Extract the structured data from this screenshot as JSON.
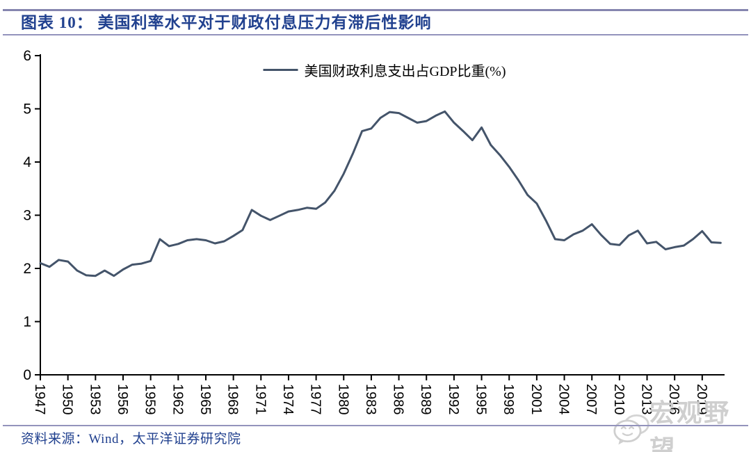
{
  "header": {
    "title": "图表 10：  美国利率水平对于财政付息压力有滞后性影响"
  },
  "legend": {
    "label": "美国财政利息支出占GDP比重(%)"
  },
  "footer": {
    "source": "资料来源：Wind，太平洋证券研究院"
  },
  "watermark": {
    "text": "宏观野望",
    "icon": "wechat-bubble-icon"
  },
  "colors": {
    "line": "#44546A",
    "title_text": "#21418F",
    "rule": "#8585AF",
    "axis": "#000000",
    "watermark": "#CDCDCD"
  },
  "chart_data": {
    "type": "line",
    "title": "图表 10：美国利率水平对于财政付息压力有滞后性影响",
    "series_name": "美国财政利息支出占GDP比重(%)",
    "xlabel": "",
    "ylabel": "",
    "ylim": [
      0,
      6
    ],
    "grid": false,
    "legend_position": "top-center",
    "y_ticks": [
      "0",
      "1",
      "2",
      "3",
      "4",
      "5",
      "6"
    ],
    "x_tick_labels": [
      "1947",
      "1950",
      "1953",
      "1956",
      "1959",
      "1962",
      "1965",
      "1968",
      "1971",
      "1974",
      "1977",
      "1980",
      "1983",
      "1986",
      "1989",
      "1992",
      "1995",
      "1998",
      "2001",
      "2004",
      "2007",
      "2010",
      "2013",
      "2016",
      "2019"
    ],
    "x": [
      1947,
      1948,
      1949,
      1950,
      1951,
      1952,
      1953,
      1954,
      1955,
      1956,
      1957,
      1958,
      1959,
      1960,
      1961,
      1962,
      1963,
      1964,
      1965,
      1966,
      1967,
      1968,
      1969,
      1970,
      1971,
      1972,
      1973,
      1974,
      1975,
      1976,
      1977,
      1978,
      1979,
      1980,
      1981,
      1982,
      1983,
      1984,
      1985,
      1986,
      1987,
      1988,
      1989,
      1990,
      1991,
      1992,
      1993,
      1994,
      1995,
      1996,
      1997,
      1998,
      1999,
      2000,
      2001,
      2002,
      2003,
      2004,
      2005,
      2006,
      2007,
      2008,
      2009,
      2010,
      2011,
      2012,
      2013,
      2014,
      2015,
      2016,
      2017,
      2018,
      2019,
      2020,
      2021
    ],
    "values": [
      2.1,
      2.03,
      2.16,
      2.13,
      1.96,
      1.87,
      1.86,
      1.96,
      1.86,
      1.98,
      2.07,
      2.09,
      2.14,
      2.55,
      2.42,
      2.46,
      2.53,
      2.55,
      2.53,
      2.47,
      2.51,
      2.61,
      2.72,
      3.1,
      2.99,
      2.91,
      2.99,
      3.07,
      3.1,
      3.14,
      3.12,
      3.24,
      3.46,
      3.78,
      4.16,
      4.58,
      4.63,
      4.83,
      4.94,
      4.92,
      4.83,
      4.74,
      4.77,
      4.87,
      4.95,
      4.74,
      4.58,
      4.41,
      4.65,
      4.32,
      4.13,
      3.91,
      3.66,
      3.38,
      3.22,
      2.9,
      2.55,
      2.53,
      2.64,
      2.71,
      2.83,
      2.63,
      2.46,
      2.44,
      2.62,
      2.71,
      2.47,
      2.5,
      2.36,
      2.4,
      2.43,
      2.55,
      2.7,
      2.49,
      2.48
    ]
  }
}
